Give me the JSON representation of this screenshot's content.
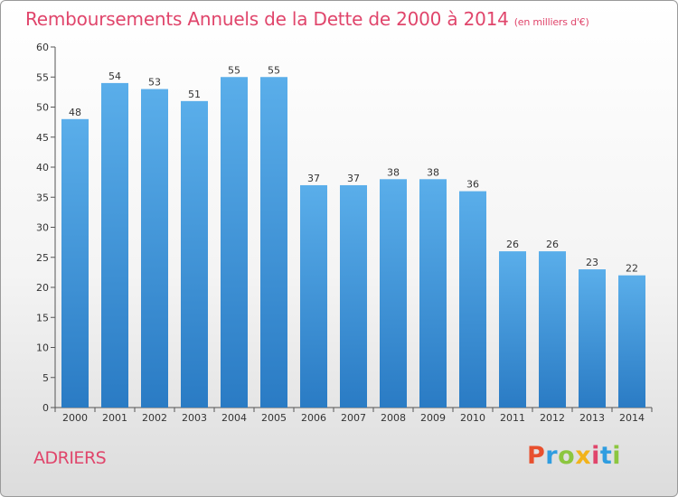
{
  "chart_data": {
    "type": "bar",
    "title": "Remboursements Annuels de la Dette de 2000 à 2014",
    "subtitle": "(en milliers d'€)",
    "categories": [
      "2000",
      "2001",
      "2002",
      "2003",
      "2004",
      "2005",
      "2006",
      "2007",
      "2008",
      "2009",
      "2010",
      "2011",
      "2012",
      "2013",
      "2014"
    ],
    "values": [
      48,
      54,
      53,
      51,
      55,
      55,
      37,
      37,
      38,
      38,
      36,
      26,
      26,
      23,
      22
    ],
    "xlabel": "",
    "ylabel": "",
    "ylim": [
      0,
      60
    ],
    "yticks": [
      0,
      5,
      10,
      15,
      20,
      25,
      30,
      35,
      40,
      45,
      50,
      55,
      60
    ],
    "grid": false,
    "bar_color": "#3d8fd6"
  },
  "footer": {
    "commune": "ADRIERS",
    "brand": {
      "letters": [
        "P",
        "r",
        "o",
        "x",
        "i",
        "t",
        "i"
      ],
      "colors": [
        "#e8502e",
        "#2f9de0",
        "#8cc63f",
        "#f2b31b",
        "#e0456b",
        "#2f9de0",
        "#8cc63f"
      ]
    }
  }
}
